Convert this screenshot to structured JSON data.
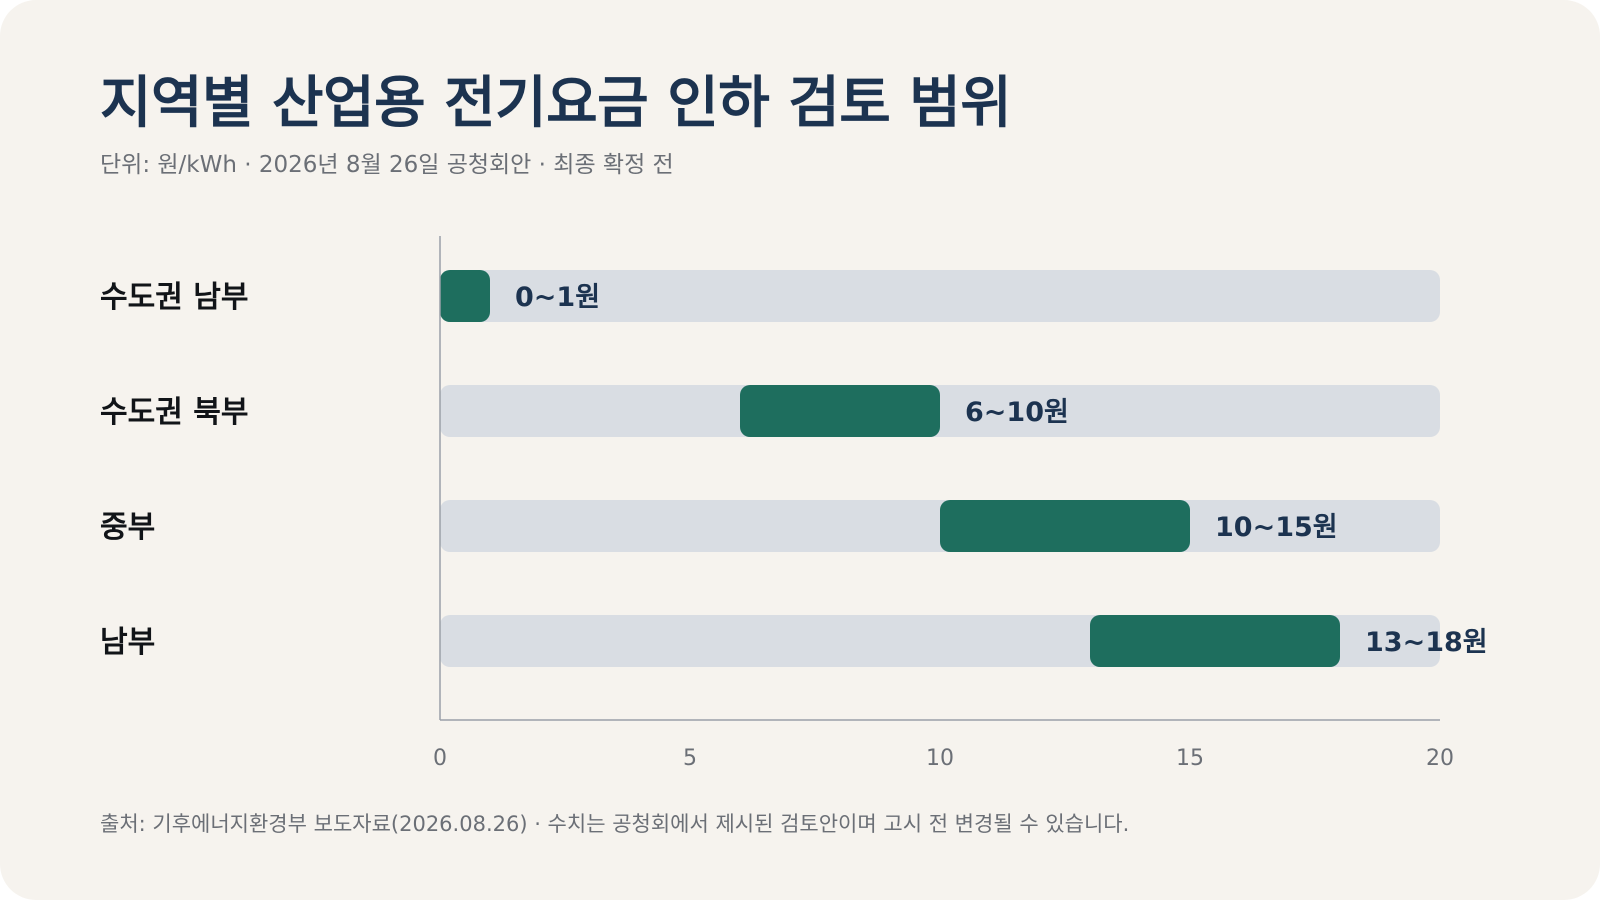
{
  "page": {
    "title": "지역별 산업용 전기요금 인하 검토 범위",
    "subtitle": "단위: 원/kWh · 2026년 8월 26일 공청회안 · 최종 확정 전",
    "source": "출처: 기후에너지환경부 보도자료(2026.08.26) · 수치는 공청회에서 제시된 검토안이며 고시 전 변경될 수 있습니다."
  },
  "colors": {
    "background": "#f6f3ee",
    "track": "#d9dde3",
    "bar": "#1e6e5e",
    "title": "#1c3350",
    "axis": "#9aa0a8"
  },
  "chart_data": {
    "type": "bar",
    "orientation": "horizontal",
    "variant": "range",
    "title": "지역별 산업용 전기요금 인하 검토 범위",
    "unit": "원/kWh",
    "categories": [
      "수도권 남부",
      "수도권 북부",
      "중부",
      "남부"
    ],
    "ranges": [
      [
        0,
        1
      ],
      [
        6,
        10
      ],
      [
        10,
        15
      ],
      [
        13,
        18
      ]
    ],
    "labels": [
      "0~1원",
      "6~10원",
      "10~15원",
      "13~18원"
    ],
    "xlim": [
      0,
      20
    ],
    "xticks": [
      "0",
      "5",
      "10",
      "15",
      "20"
    ],
    "grid": false
  }
}
